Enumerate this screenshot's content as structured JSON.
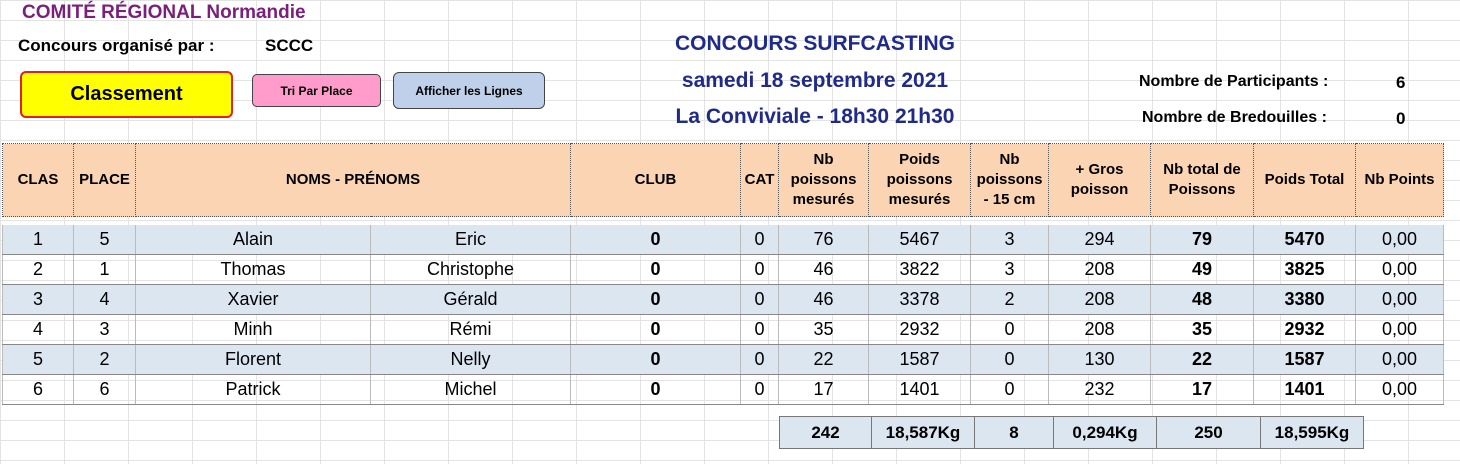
{
  "header": {
    "comite": "COMITÉ  RÉGIONAL  Normandie",
    "organise_label": "Concours organisé par :",
    "organise_value": "SCCC",
    "title1": "CONCOURS  SURFCASTING",
    "title2": "samedi 18 septembre 2021",
    "title3": "La Conviviale - 18h30 21h30"
  },
  "buttons": {
    "classement": "Classement",
    "tri_par_place": "Tri Par Place",
    "afficher_lignes": "Afficher les Lignes"
  },
  "stats": {
    "participants_label": "Nombre de Participants :",
    "participants_value": "6",
    "bredouilles_label": "Nombre de Bredouilles :",
    "bredouilles_value": "0"
  },
  "table": {
    "headers": {
      "clas": "CLAS",
      "place": "PLACE",
      "noms": "NOMS - PRÉNOMS",
      "club": "CLUB",
      "cat": "CAT",
      "nb_mesures": "Nb poissons mesurés",
      "poids_mesures": "Poids poissons mesurés",
      "nb_15": "Nb poissons - 15 cm",
      "gros": "+ Gros poisson",
      "nb_total": "Nb total de Poissons",
      "poids_total": "Poids Total",
      "points": "Nb Points"
    },
    "rows": [
      {
        "clas": "1",
        "place": "5",
        "nom": "Alain",
        "prenom": "Eric",
        "club": "0",
        "cat": "0",
        "nb_mes": "76",
        "poids_mes": "5467",
        "nb15": "3",
        "gros": "294",
        "nb_total": "79",
        "poids_total": "5470",
        "points": "0,00"
      },
      {
        "clas": "2",
        "place": "1",
        "nom": "Thomas",
        "prenom": "Christophe",
        "club": "0",
        "cat": "0",
        "nb_mes": "46",
        "poids_mes": "3822",
        "nb15": "3",
        "gros": "208",
        "nb_total": "49",
        "poids_total": "3825",
        "points": "0,00"
      },
      {
        "clas": "3",
        "place": "4",
        "nom": "Xavier",
        "prenom": "Gérald",
        "club": "0",
        "cat": "0",
        "nb_mes": "46",
        "poids_mes": "3378",
        "nb15": "2",
        "gros": "208",
        "nb_total": "48",
        "poids_total": "3380",
        "points": "0,00"
      },
      {
        "clas": "4",
        "place": "3",
        "nom": "Minh",
        "prenom": "Rémi",
        "club": "0",
        "cat": "0",
        "nb_mes": "35",
        "poids_mes": "2932",
        "nb15": "0",
        "gros": "208",
        "nb_total": "35",
        "poids_total": "2932",
        "points": "0,00"
      },
      {
        "clas": "5",
        "place": "2",
        "nom": "Florent",
        "prenom": "Nelly",
        "club": "0",
        "cat": "0",
        "nb_mes": "22",
        "poids_mes": "1587",
        "nb15": "0",
        "gros": "130",
        "nb_total": "22",
        "poids_total": "1587",
        "points": "0,00"
      },
      {
        "clas": "6",
        "place": "6",
        "nom": "Patrick",
        "prenom": "Michel",
        "club": "0",
        "cat": "0",
        "nb_mes": "17",
        "poids_mes": "1401",
        "nb15": "0",
        "gros": "232",
        "nb_total": "17",
        "poids_total": "1401",
        "points": "0,00"
      }
    ]
  },
  "totals": {
    "nb_mes": "242",
    "poids_mes": "18,587Kg",
    "nb15": "8",
    "gros": "0,294Kg",
    "nb_total": "250",
    "poids_total": "18,595Kg"
  }
}
